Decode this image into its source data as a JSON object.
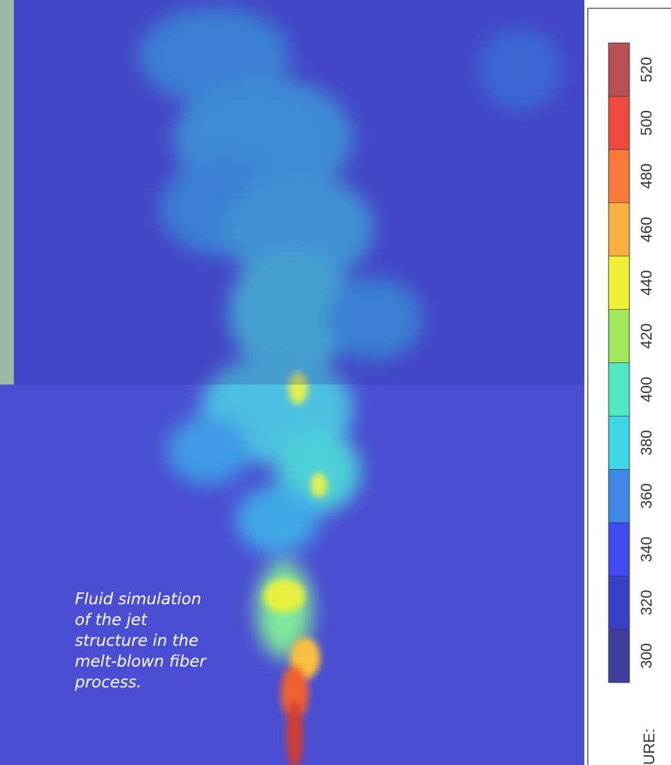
{
  "caption": {
    "lines": [
      "Fluid simulation",
      "of the jet",
      "structure in the",
      "melt-blown fiber",
      "process."
    ]
  },
  "colorbar": {
    "label": "URE:",
    "ticks": [
      300,
      320,
      340,
      360,
      380,
      400,
      420,
      440,
      460,
      480,
      500,
      520
    ],
    "colors": [
      "#3f3fa0",
      "#3a3fc8",
      "#3f4cf0",
      "#3f8ae6",
      "#3fd6e8",
      "#4fe8c0",
      "#9ee85a",
      "#f0f036",
      "#f8b040",
      "#f87a3a",
      "#f04a40",
      "#b85050"
    ]
  }
}
